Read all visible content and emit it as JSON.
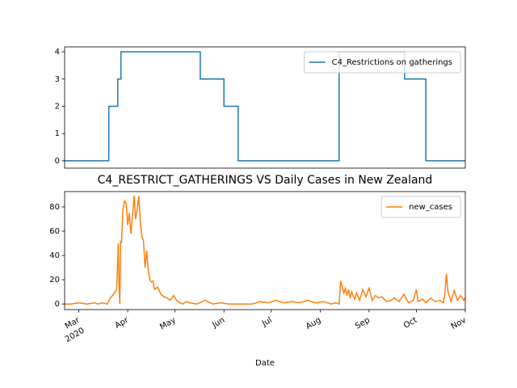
{
  "chart_data": [
    {
      "type": "line",
      "xlim": [
        -9,
        245
      ],
      "ylim": [
        -0.27,
        4.18
      ],
      "yticks": [
        0,
        1,
        2,
        3,
        4
      ],
      "legend": "upper right",
      "series": [
        {
          "name": "C4_Restrictions on gatherings",
          "color": "#1f77b4",
          "x": [
            -9,
            19,
            19,
            24.7,
            24.7,
            26.7,
            26.7,
            77,
            77,
            92,
            92,
            101,
            101,
            165,
            165,
            206.5,
            206.5,
            220,
            220,
            245
          ],
          "values": [
            0,
            0,
            2,
            2,
            3,
            3,
            4,
            4,
            3,
            3,
            2,
            2,
            0,
            0,
            4,
            4,
            3,
            3,
            0,
            0
          ]
        }
      ]
    },
    {
      "type": "line",
      "title": "C4_RESTRICT_GATHERINGS VS Daily Cases in New Zealand",
      "xlabel": "Date",
      "xtick_year": "2020",
      "xlim": [
        -9,
        245
      ],
      "xticks": [
        {
          "value": 0,
          "label": "Mar"
        },
        {
          "value": 31,
          "label": "Apr"
        },
        {
          "value": 61,
          "label": "May"
        },
        {
          "value": 92,
          "label": "Jun"
        },
        {
          "value": 122,
          "label": "Jul"
        },
        {
          "value": 153,
          "label": "Aug"
        },
        {
          "value": 184,
          "label": "Sep"
        },
        {
          "value": 214,
          "label": "Oct"
        },
        {
          "value": 245,
          "label": "Nov"
        }
      ],
      "ylim": [
        -4.6,
        92.6
      ],
      "yticks": [
        0,
        20,
        40,
        60,
        80
      ],
      "legend": "upper right",
      "series": [
        {
          "name": "new_cases",
          "color": "#ff7f0e",
          "x": [
            -9,
            -5,
            0,
            5,
            10,
            12,
            15,
            18,
            20,
            22,
            24,
            25,
            25.5,
            26,
            26.5,
            27,
            28,
            29,
            30,
            31,
            32,
            33,
            34,
            35,
            36,
            37,
            38,
            39,
            40,
            41,
            42,
            43,
            44,
            45,
            46,
            47,
            48,
            50,
            52,
            54,
            56,
            58,
            60,
            62,
            64,
            66,
            68,
            70,
            75,
            80,
            85,
            90,
            95,
            100,
            110,
            115,
            120,
            125,
            130,
            135,
            140,
            145,
            150,
            155,
            160,
            163,
            165,
            166,
            167,
            168,
            169,
            170,
            171,
            172,
            173,
            174,
            175,
            176,
            178,
            180,
            182,
            184,
            186,
            188,
            190,
            192,
            195,
            198,
            200,
            203,
            206,
            209,
            212,
            214,
            215,
            218,
            220,
            223,
            226,
            229,
            231,
            232,
            233,
            234,
            236,
            238,
            240,
            242,
            244,
            245
          ],
          "values": [
            0,
            0,
            1,
            0,
            1,
            0,
            1,
            0,
            5,
            8,
            12,
            50,
            15,
            0,
            52,
            50,
            78,
            85,
            83,
            65,
            75,
            58,
            72,
            89,
            70,
            78,
            89,
            67,
            55,
            52,
            30,
            44,
            28,
            20,
            18,
            19,
            12,
            14,
            8,
            6,
            5,
            3,
            7,
            3,
            1,
            0,
            2,
            1,
            0,
            3,
            0,
            1,
            0,
            0,
            0,
            2,
            1,
            3,
            1,
            2,
            1,
            3,
            1,
            2,
            0,
            1,
            0,
            19,
            14,
            9,
            13,
            7,
            12,
            5,
            10,
            6,
            4,
            9,
            3,
            12,
            6,
            13,
            3,
            7,
            5,
            6,
            2,
            3,
            5,
            2,
            8,
            1,
            3,
            12,
            2,
            4,
            1,
            5,
            2,
            3,
            1,
            8,
            25,
            10,
            2,
            11,
            3,
            7,
            3,
            5
          ]
        }
      ]
    }
  ]
}
